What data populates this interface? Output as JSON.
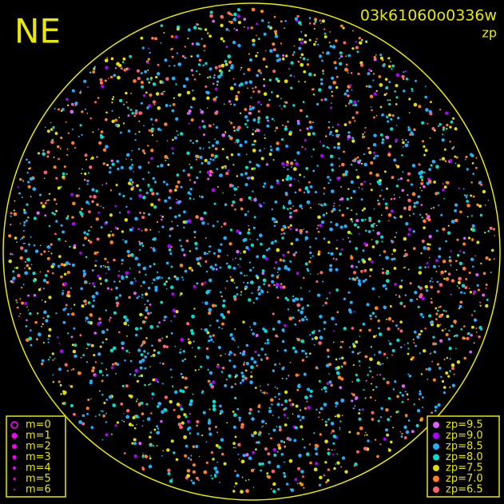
{
  "header": {
    "direction": "NE",
    "frame_id": "03k61060o0336w",
    "mode": "zp"
  },
  "magnitude_legend": {
    "color": "#ff00ff",
    "items": [
      "m=0",
      "m=1",
      "m=2",
      "m=3",
      "m=4",
      "m=5",
      "m=6"
    ]
  },
  "zp_legend": {
    "items": [
      {
        "label": "zp=9.5",
        "color": "#e060ff"
      },
      {
        "label": "zp=9.0",
        "color": "#b000ff"
      },
      {
        "label": "zp=8.5",
        "color": "#20b0ff"
      },
      {
        "label": "zp=8.0",
        "color": "#00e0d0"
      },
      {
        "label": "zp=7.5",
        "color": "#e0e000"
      },
      {
        "label": "zp=7.0",
        "color": "#ff8020"
      },
      {
        "label": "zp=6.5",
        "color": "#ff6070"
      }
    ]
  },
  "frame_color": "#e8e800"
}
